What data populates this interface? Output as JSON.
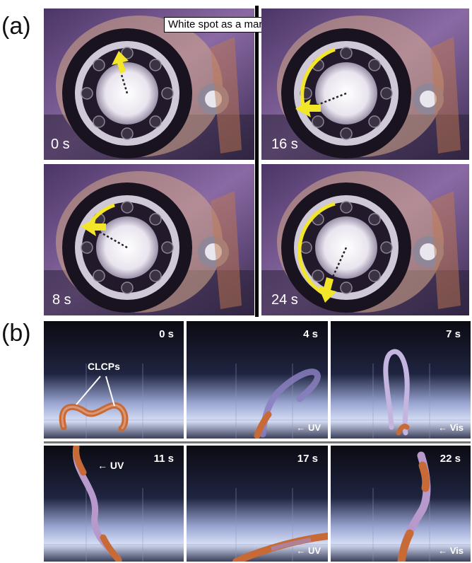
{
  "panel_a": {
    "label": "(a)",
    "callout": "White spot as a marker",
    "frames": [
      {
        "time": "0 s"
      },
      {
        "time": "16 s"
      },
      {
        "time": "8 s"
      },
      {
        "time": "24 s"
      }
    ]
  },
  "panel_b": {
    "label": "(b)",
    "clcp_label": "CLCPs",
    "frames": [
      {
        "time": "0 s",
        "light": ""
      },
      {
        "time": "4 s",
        "light": "← UV"
      },
      {
        "time": "7 s",
        "light": "← Vis"
      },
      {
        "time": "11 s",
        "light": "← UV"
      },
      {
        "time": "17 s",
        "light": "← UV"
      },
      {
        "time": "22 s",
        "light": "← Vis"
      }
    ]
  },
  "colors": {
    "photo_background": "#6b4d86",
    "ring_dark": "#15111a",
    "arrow_yellow": "#f3e628",
    "film_orange": "#c76a35",
    "video_sky": "#0d0d14"
  }
}
